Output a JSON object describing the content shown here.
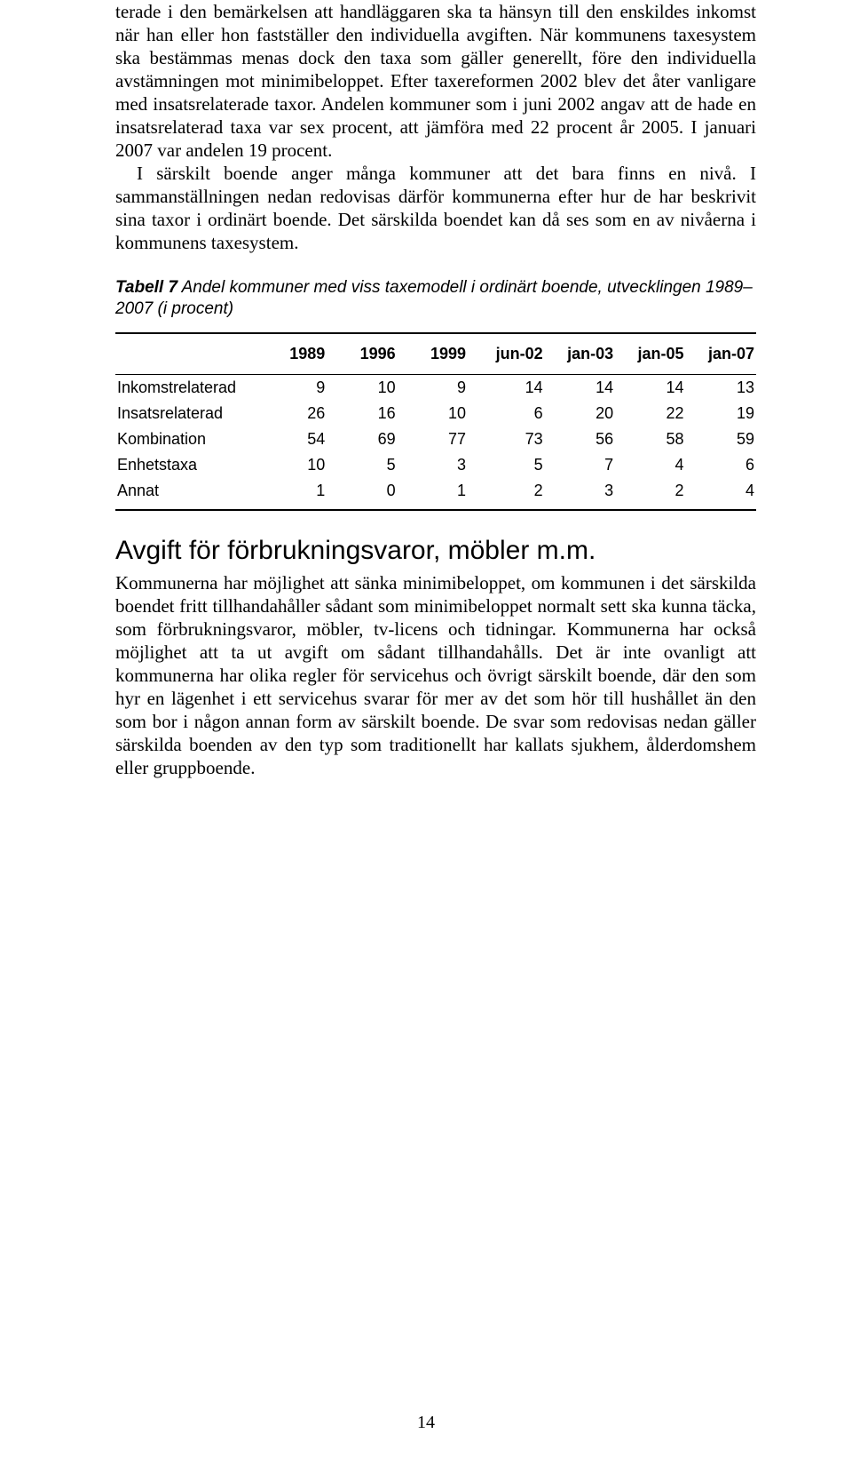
{
  "para1": "terade i den bemärkelsen att handläggaren ska ta hänsyn till den enskildes inkomst när han eller hon fastställer den individuella avgiften. När kommunens taxesystem ska bestämmas menas dock den taxa som gäller generellt, före den individuella avstämningen mot minimibeloppet. Efter taxereformen 2002 blev det åter vanligare med insatsrelaterade taxor. Andelen kommuner som i juni 2002 angav att de hade en insatsrelaterad taxa var sex procent, att jämföra med 22 procent år 2005. I januari 2007 var andelen 19 procent.",
  "para2": "I särskilt boende anger många kommuner att det bara finns en nivå. I sammanställningen nedan redovisas därför kommunerna efter hur de har beskrivit sina taxor i ordinärt boende. Det särskilda boendet kan då ses som en av nivåerna i kommunens taxesystem.",
  "table": {
    "caption_bold": "Tabell 7",
    "caption_rest": " Andel kommuner med viss taxemodell i ordinärt boende, utvecklingen 1989–2007 (i procent)",
    "columns": [
      "",
      "1989",
      "1996",
      "1999",
      "jun-02",
      "jan-03",
      "jan-05",
      "jan-07"
    ],
    "rows": [
      [
        "Inkomstrelaterad",
        "9",
        "10",
        "9",
        "14",
        "14",
        "14",
        "13"
      ],
      [
        "Insatsrelaterad",
        "26",
        "16",
        "10",
        "6",
        "20",
        "22",
        "19"
      ],
      [
        "Kombination",
        "54",
        "69",
        "77",
        "73",
        "56",
        "58",
        "59"
      ],
      [
        "Enhetstaxa",
        "10",
        "5",
        "3",
        "5",
        "7",
        "4",
        "6"
      ],
      [
        "Annat",
        "1",
        "0",
        "1",
        "2",
        "3",
        "2",
        "4"
      ]
    ]
  },
  "section_heading": "Avgift för förbrukningsvaror, möbler m.m.",
  "para3": "Kommunerna har möjlighet att sänka minimibeloppet, om kommunen i det särskilda boendet fritt tillhandahåller sådant som minimibeloppet normalt sett ska kunna täcka, som förbrukningsvaror, möbler, tv-licens och tidningar. Kommunerna har också möjlighet att ta ut avgift om sådant tillhandahålls. Det är inte ovanligt att kommunerna har olika regler för servicehus och övrigt särskilt boende, där den som hyr en lägenhet i ett servicehus svarar för mer av det som hör till hushållet än den som bor i någon annan form av särskilt boende. De svar som redovisas nedan gäller särskilda boenden av den typ som traditionellt har kallats sjukhem, ålderdomshem eller gruppboende.",
  "page_number": "14"
}
